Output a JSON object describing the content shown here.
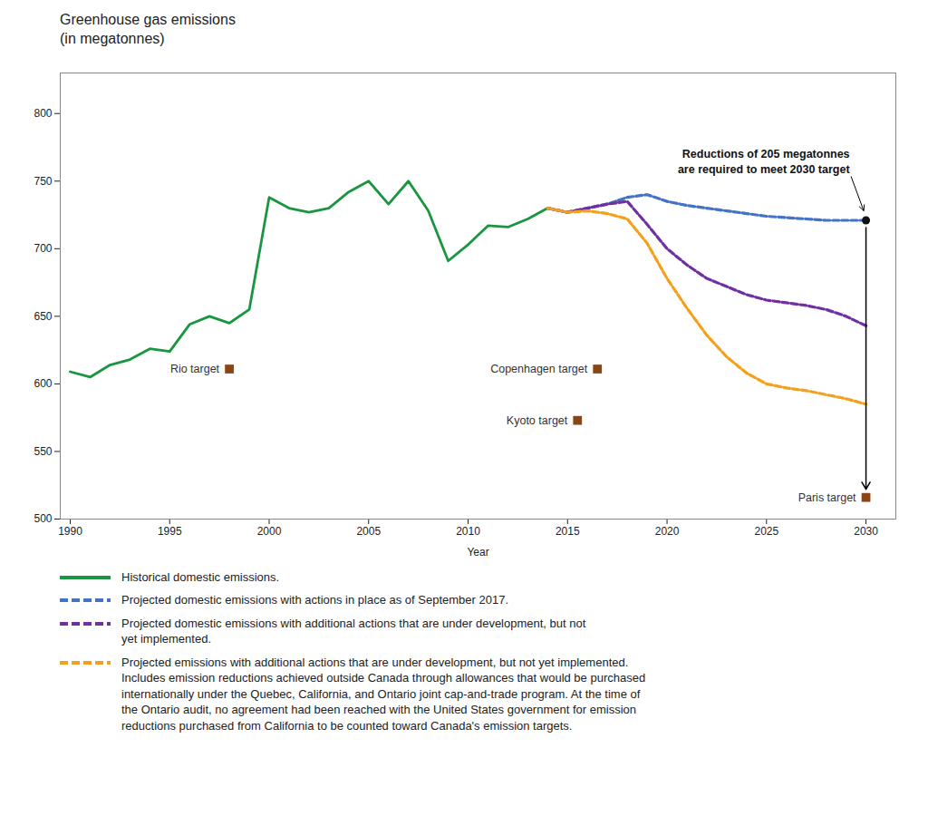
{
  "chart_data": {
    "type": "line",
    "title": "Greenhouse gas emissions\n(in megatonnes)",
    "xlabel": "Year",
    "xlim": [
      1989.5,
      2031.5
    ],
    "ylim": [
      500,
      830
    ],
    "xticks": [
      1990,
      1995,
      2000,
      2005,
      2010,
      2015,
      2020,
      2025,
      2030
    ],
    "yticks": [
      500,
      550,
      600,
      650,
      700,
      750,
      800
    ],
    "grid": false,
    "series": [
      {
        "name": "Historical domestic emissions.",
        "color": "#1a9641",
        "line_style": "solid",
        "x": [
          1990,
          1991,
          1992,
          1993,
          1994,
          1995,
          1996,
          1997,
          1998,
          1999,
          2000,
          2001,
          2002,
          2003,
          2004,
          2005,
          2006,
          2007,
          2008,
          2009,
          2010,
          2011,
          2012,
          2013,
          2014
        ],
        "values": [
          609,
          605,
          614,
          618,
          626,
          624,
          644,
          650,
          645,
          655,
          738,
          730,
          727,
          730,
          742,
          750,
          733,
          750,
          728,
          691,
          703,
          717,
          716,
          722,
          730
        ]
      },
      {
        "name": "Projected domestic emissions with actions in place as of September 2017.",
        "color": "#4472c4",
        "line_style": "dashed",
        "x": [
          2014,
          2015,
          2016,
          2017,
          2018,
          2019,
          2020,
          2021,
          2022,
          2023,
          2024,
          2025,
          2026,
          2027,
          2028,
          2029,
          2030
        ],
        "values": [
          730,
          727,
          730,
          733,
          738,
          740,
          735,
          732,
          730,
          728,
          726,
          724,
          723,
          722,
          721,
          721,
          721
        ]
      },
      {
        "name": "Projected domestic emissions with additional actions that are under development, but not\nyet implemented.",
        "color": "#7030a0",
        "line_style": "dashed",
        "x": [
          2014,
          2015,
          2016,
          2017,
          2018,
          2019,
          2020,
          2021,
          2022,
          2023,
          2024,
          2025,
          2026,
          2027,
          2028,
          2029,
          2030
        ],
        "values": [
          730,
          727,
          730,
          733,
          735,
          718,
          700,
          688,
          678,
          672,
          666,
          662,
          660,
          658,
          655,
          650,
          643
        ]
      },
      {
        "name": "Projected emissions with additional actions that are under development, but not yet implemented.\nIncludes emission reductions achieved outside Canada through allowances that would be purchased\ninternationally under the Quebec, California, and Ontario joint cap-and-trade program. At the time of\nthe Ontario audit, no agreement had been reached with the United States government for emission\nreductions purchased from California to be counted toward Canada's emission targets.",
        "color": "#f4a01c",
        "line_style": "dashed",
        "x": [
          2014,
          2015,
          2016,
          2017,
          2018,
          2019,
          2020,
          2021,
          2022,
          2023,
          2024,
          2025,
          2026,
          2027,
          2028,
          2029,
          2030
        ],
        "values": [
          730,
          727,
          728,
          726,
          722,
          704,
          678,
          656,
          636,
          620,
          608,
          600,
          597,
          595,
          592,
          589,
          585
        ]
      }
    ],
    "targets": [
      {
        "label": "Paris target",
        "x": 2030,
        "y": 516,
        "color": "#8b4513",
        "marker": "square"
      },
      {
        "label": "Rio target",
        "x": 1998,
        "y": 611,
        "color": "#8b4513",
        "marker": "square"
      },
      {
        "label": "Copenhagen target",
        "x": 2016.5,
        "y": 611,
        "color": "#8b4513",
        "marker": "square"
      },
      {
        "label": "Kyoto target",
        "x": 2015.5,
        "y": 573,
        "color": "#8b4513",
        "marker": "square"
      }
    ],
    "annotations": [
      {
        "text": "Reductions of 205 megatonnes\nare required to meet 2030 target",
        "x": 2030,
        "y": 721,
        "color": "#111111",
        "marker": "circle"
      }
    ]
  }
}
